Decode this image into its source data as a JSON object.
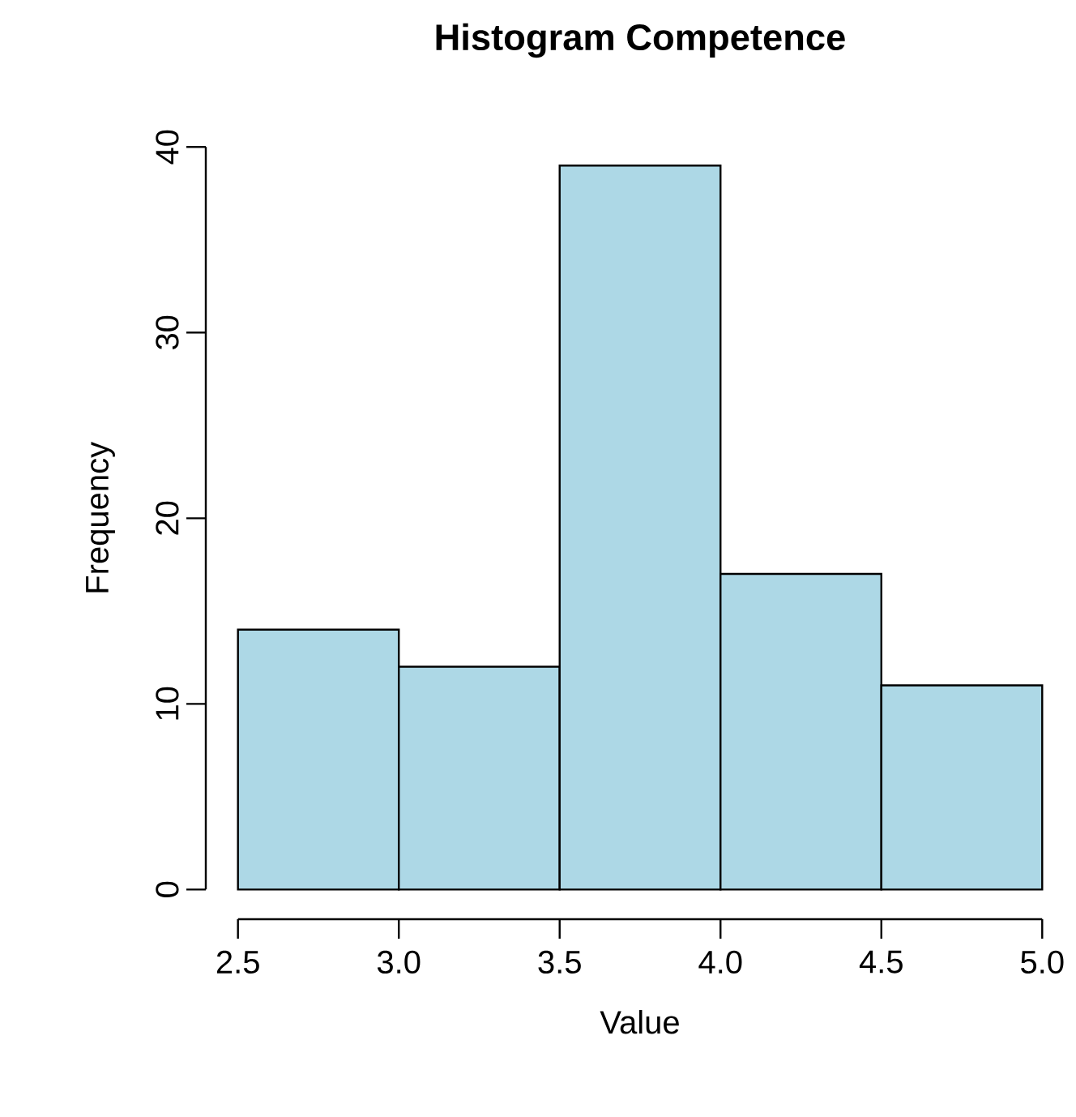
{
  "chart_data": {
    "type": "histogram",
    "title": "Histogram Competence",
    "xlabel": "Value",
    "ylabel": "Frequency",
    "bins": [
      2.5,
      3.0,
      3.5,
      4.0,
      4.5,
      5.0
    ],
    "values": [
      14,
      12,
      39,
      17,
      11
    ],
    "color": "#add8e6",
    "xlim": [
      2.5,
      5.0
    ],
    "ylim": [
      0,
      40
    ],
    "xticks": [
      {
        "value": 2.5,
        "label": "2.5"
      },
      {
        "value": 3.0,
        "label": "3.0"
      },
      {
        "value": 3.5,
        "label": "3.5"
      },
      {
        "value": 4.0,
        "label": "4.0"
      },
      {
        "value": 4.5,
        "label": "4.5"
      },
      {
        "value": 5.0,
        "label": "5.0"
      }
    ],
    "yticks": [
      0,
      10,
      20,
      30,
      40
    ],
    "grid": false
  }
}
